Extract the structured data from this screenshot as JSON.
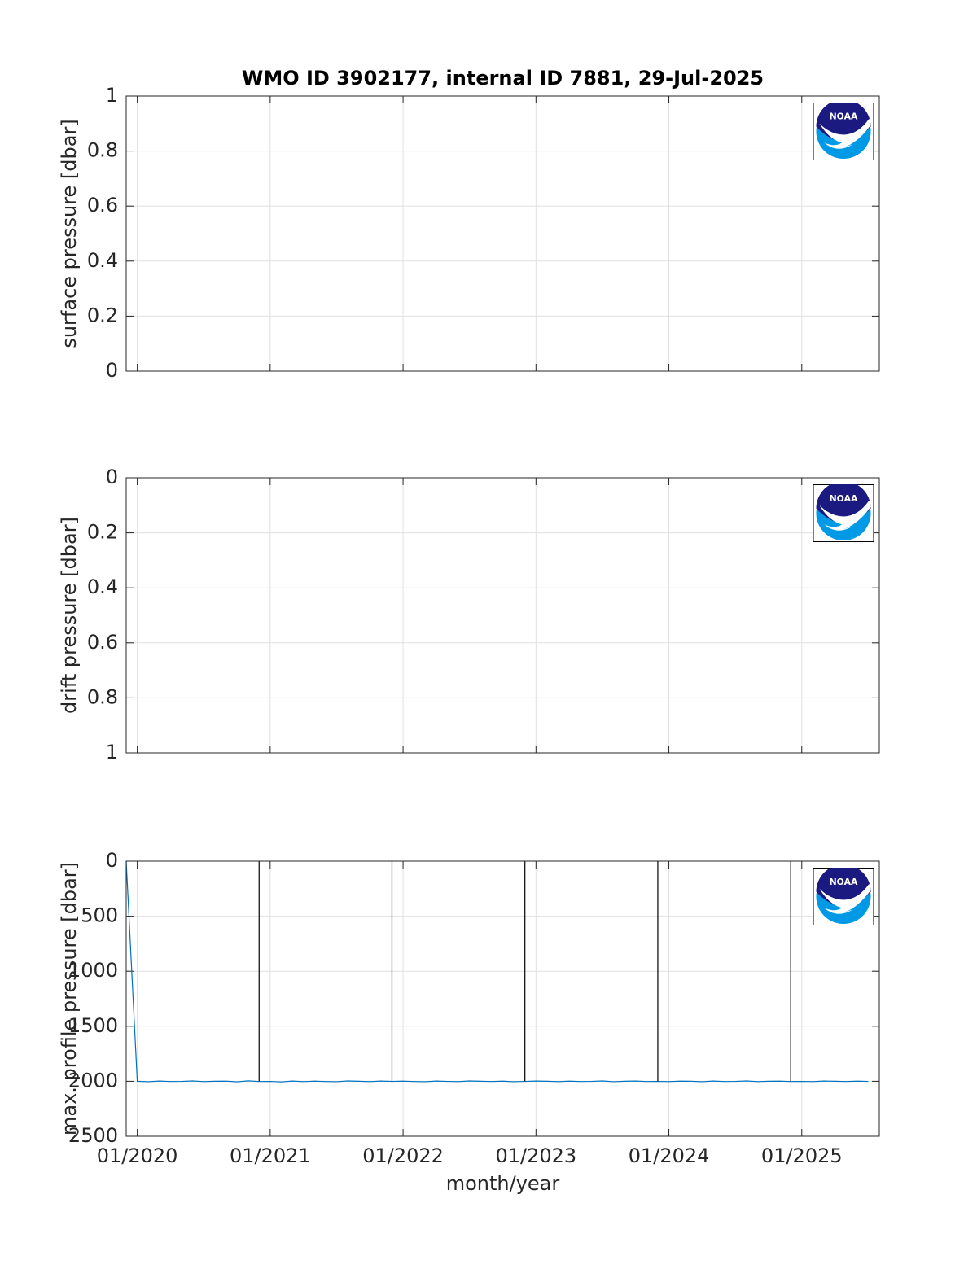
{
  "chart_data": [
    {
      "type": "line",
      "title": "WMO ID 3902177, internal ID 7881, 29-Jul-2025",
      "y_label": "surface pressure [dbar]",
      "xlim": [
        "2019-12",
        "2025-08"
      ],
      "xticks": [
        {
          "value": "2020-01",
          "label": "01/2020"
        },
        {
          "value": "2021-01",
          "label": "01/2021"
        },
        {
          "value": "2022-01",
          "label": "01/2022"
        },
        {
          "value": "2023-01",
          "label": "01/2023"
        },
        {
          "value": "2024-01",
          "label": "01/2024"
        },
        {
          "value": "2025-01",
          "label": "01/2025"
        }
      ],
      "show_xtick_labels": false,
      "ylim": [
        0,
        1
      ],
      "yticks": [
        0,
        0.2,
        0.4,
        0.6,
        0.8,
        1
      ],
      "y_reversed": false,
      "grid": true,
      "series": []
    },
    {
      "type": "line",
      "y_label": "drift pressure [dbar]",
      "xlim": [
        "2019-12",
        "2025-08"
      ],
      "xticks": [
        {
          "value": "2020-01",
          "label": "01/2020"
        },
        {
          "value": "2021-01",
          "label": "01/2021"
        },
        {
          "value": "2022-01",
          "label": "01/2022"
        },
        {
          "value": "2023-01",
          "label": "01/2023"
        },
        {
          "value": "2024-01",
          "label": "01/2024"
        },
        {
          "value": "2025-01",
          "label": "01/2025"
        }
      ],
      "show_xtick_labels": false,
      "ylim": [
        0,
        1
      ],
      "yticks": [
        0,
        0.2,
        0.4,
        0.6,
        0.8,
        1
      ],
      "y_reversed": true,
      "grid": true,
      "series": []
    },
    {
      "type": "line",
      "y_label": "max. profile pressure [dbar]",
      "x_label": "month/year",
      "xlim": [
        "2019-12",
        "2025-08"
      ],
      "xticks": [
        {
          "value": "2020-01",
          "label": "01/2020"
        },
        {
          "value": "2021-01",
          "label": "01/2021"
        },
        {
          "value": "2022-01",
          "label": "01/2022"
        },
        {
          "value": "2023-01",
          "label": "01/2023"
        },
        {
          "value": "2024-01",
          "label": "01/2024"
        },
        {
          "value": "2025-01",
          "label": "01/2025"
        }
      ],
      "show_xtick_labels": true,
      "ylim": [
        0,
        2500
      ],
      "yticks": [
        0,
        500,
        1000,
        1500,
        2000,
        2500
      ],
      "y_reversed": true,
      "grid": true,
      "series": [
        {
          "color": "#0072bd",
          "x": [
            "2019-12",
            "2020-01",
            "2020-02",
            "2020-03",
            "2020-04",
            "2020-05",
            "2020-06",
            "2020-07",
            "2020-08",
            "2020-09",
            "2020-10",
            "2020-11",
            "2020-12",
            "2021-01",
            "2021-02",
            "2021-03",
            "2021-04",
            "2021-05",
            "2021-06",
            "2021-07",
            "2021-08",
            "2021-09",
            "2021-10",
            "2021-11",
            "2021-12",
            "2022-01",
            "2022-02",
            "2022-03",
            "2022-04",
            "2022-05",
            "2022-06",
            "2022-07",
            "2022-08",
            "2022-09",
            "2022-10",
            "2022-11",
            "2022-12",
            "2023-01",
            "2023-02",
            "2023-03",
            "2023-04",
            "2023-05",
            "2023-06",
            "2023-07",
            "2023-08",
            "2023-09",
            "2023-10",
            "2023-11",
            "2023-12",
            "2024-01",
            "2024-02",
            "2024-03",
            "2024-04",
            "2024-05",
            "2024-06",
            "2024-07",
            "2024-08",
            "2024-09",
            "2024-10",
            "2024-11",
            "2024-12",
            "2025-01",
            "2025-02",
            "2025-03",
            "2025-04",
            "2025-05",
            "2025-06",
            "2025-07"
          ],
          "values": [
            0,
            2000,
            2004,
            1998,
            2002,
            2001,
            1997,
            2003,
            2000,
            1999,
            2005,
            1996,
            2002,
            2001,
            2006,
            1998,
            2003,
            1999,
            2002,
            2004,
            1997,
            2000,
            2003,
            1998,
            2001,
            1999,
            2002,
            2004,
            1998,
            2001,
            2003,
            1997,
            2000,
            2002,
            1999,
            2004,
            2001,
            1998,
            2000,
            2003,
            1999,
            2002,
            2001,
            1997,
            2004,
            2000,
            1998,
            2002,
            2001,
            2003,
            1999,
            2000,
            2004,
            1998,
            2002,
            2001,
            1997,
            2003,
            2000,
            1999,
            2002,
            2001,
            2003,
            1998,
            2000,
            2002,
            1999,
            2001
          ]
        },
        {
          "color": "#000000",
          "x": [
            "2020-12",
            "2020-12"
          ],
          "values": [
            0,
            2000
          ]
        },
        {
          "color": "#000000",
          "x": [
            "2021-12",
            "2021-12"
          ],
          "values": [
            0,
            2000
          ]
        },
        {
          "color": "#000000",
          "x": [
            "2022-12",
            "2022-12"
          ],
          "values": [
            0,
            2000
          ]
        },
        {
          "color": "#000000",
          "x": [
            "2023-12",
            "2023-12"
          ],
          "values": [
            0,
            2000
          ]
        },
        {
          "color": "#000000",
          "x": [
            "2024-12",
            "2024-12"
          ],
          "values": [
            0,
            2000
          ]
        }
      ]
    }
  ]
}
